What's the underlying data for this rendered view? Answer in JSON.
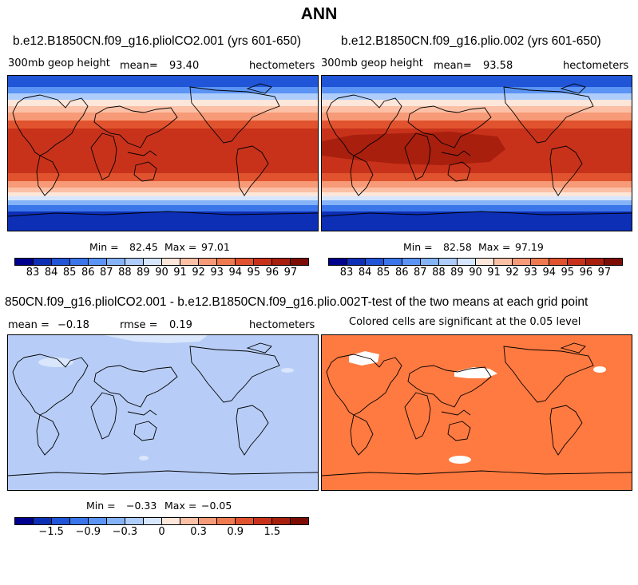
{
  "title": "ANN",
  "panels": [
    {
      "title": "b.e12.B1850CN.f09_g16.pliolCO2.001 (yrs 601-650)",
      "left_label": "300mb geop height",
      "mean_label": "mean=",
      "mean_value": "93.40",
      "units": "hectometers",
      "min_label": "Min =",
      "min_value": "82.45",
      "max_label": "Max =",
      "max_value": "97.01"
    },
    {
      "title": "b.e12.B1850CN.f09_g16.plio.002 (yrs 601-650)",
      "left_label": "300mb geop height",
      "mean_label": "mean=",
      "mean_value": "93.58",
      "units": "hectometers",
      "min_label": "Min =",
      "min_value": "82.58",
      "max_label": "Max =",
      "max_value": "97.19"
    },
    {
      "title": "850CN.f09_g16.pliolCO2.001 - b.e12.B1850CN.f09_g16.plio.002",
      "left_label": "mean =",
      "mean_value": "−0.18",
      "rmse_label": "rmse =",
      "rmse_value": "0.19",
      "units": "hectometers",
      "min_label": "Min =",
      "min_value": "−0.33",
      "max_label": "Max =",
      "max_value": "−0.05"
    },
    {
      "title": "T-test of the two means at each grid point",
      "subtitle": "Colored cells are significant at the 0.05 level"
    }
  ],
  "colorbar_colors": [
    "#00008f",
    "#0d2fb5",
    "#1f55d6",
    "#3b75ea",
    "#5b94f4",
    "#85b3f8",
    "#aecdfb",
    "#d6e6fc",
    "#fde6da",
    "#fbc0a5",
    "#f79a77",
    "#f07a4f",
    "#e0532e",
    "#c8321a",
    "#a81f0e",
    "#7d0c05"
  ],
  "colorbar_top_ticks": [
    "83",
    "84",
    "85",
    "86",
    "87",
    "88",
    "89",
    "90",
    "91",
    "92",
    "93",
    "94",
    "95",
    "96",
    "97"
  ],
  "colorbar_diff_ticks": [
    "−1.5",
    "−0.9",
    "−0.3",
    "0",
    "0.3",
    "0.9",
    "1.5"
  ],
  "map_colors": {
    "diff_fill": "#b7cdf7",
    "diff_light": "#d9e6fb",
    "ttest_fill": "#ff7a40",
    "coast": "#000000"
  }
}
